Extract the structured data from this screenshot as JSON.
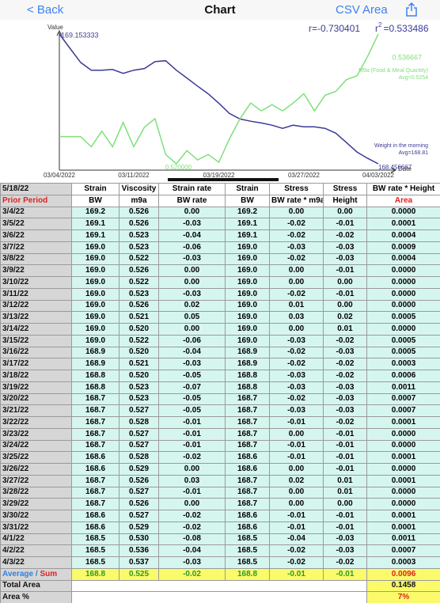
{
  "nav": {
    "back": "< Back",
    "title": "Chart",
    "csv": "CSV",
    "area": "Area"
  },
  "chart": {
    "type": "line",
    "value_label": "Value",
    "date_label": "Date",
    "r": "r=-0.730401",
    "r2": {
      "base": "r",
      "sup": "2",
      "text": "=0.533486"
    },
    "x": [
      "03/04/2022",
      "03/05/2022",
      "03/06/2022",
      "03/07/2022",
      "03/08/2022",
      "03/09/2022",
      "03/10/2022",
      "03/11/2022",
      "03/12/2022",
      "03/13/2022",
      "03/14/2022",
      "03/15/2022",
      "03/16/2022",
      "03/17/2022",
      "03/18/2022",
      "03/19/2022",
      "03/20/2022",
      "03/21/2022",
      "03/22/2022",
      "03/23/2022",
      "03/24/2022",
      "03/25/2022",
      "03/26/2022",
      "03/27/2022",
      "03/28/2022",
      "03/29/2022",
      "03/30/2022",
      "03/31/2022",
      "04/01/2022",
      "04/02/2022",
      "04/03/2022"
    ],
    "xticks": [
      "03/04/2022",
      "03/11/2022",
      "03/19/2022",
      "03/27/2022",
      "04/03/2022"
    ],
    "series": [
      {
        "name": "Weight in the morning",
        "avg": "Avg=168.81",
        "max_label": "169.153333",
        "min_label": "168.456667",
        "color": "#3c3a96",
        "values": [
          169.153333,
          169.077,
          169.001,
          168.959,
          168.959,
          168.963,
          168.942,
          168.959,
          168.968,
          169.005,
          169.01,
          168.959,
          168.917,
          168.874,
          168.832,
          168.782,
          168.727,
          168.697,
          168.685,
          168.676,
          168.664,
          168.647,
          168.664,
          168.655,
          168.655,
          168.647,
          168.621,
          168.571,
          168.52,
          168.486,
          168.456667
        ]
      },
      {
        "name": "M9a (Food & Meal Quantity)",
        "avg": "Avg=0.5254",
        "max_label": "0.536667",
        "min_label": "0.520000",
        "color": "#7fe07a",
        "values": [
          0.5235,
          0.5235,
          0.5235,
          0.5222,
          0.5242,
          0.5222,
          0.5253,
          0.5222,
          0.5247,
          0.5258,
          0.5212,
          0.52,
          0.5217,
          0.5205,
          0.5212,
          0.5202,
          0.5232,
          0.5258,
          0.5278,
          0.5268,
          0.5276,
          0.5268,
          0.5278,
          0.529,
          0.5268,
          0.5288,
          0.5293,
          0.5308,
          0.5313,
          0.5338,
          0.536667
        ]
      }
    ]
  },
  "table": {
    "header": [
      [
        "5/18/22",
        "Strain",
        "Viscosity",
        "Strain rate",
        "Strain",
        "Stress",
        "Stress",
        "BW rate * Height"
      ],
      [
        "Prior Period",
        "BW",
        "m9a",
        "BW rate",
        "BW",
        "BW rate * m9a",
        "Height",
        "Area"
      ]
    ],
    "rows": [
      [
        "3/4/22",
        "169.2",
        "0.526",
        "0.00",
        "169.2",
        "0.00",
        "0.00",
        "0.0000"
      ],
      [
        "3/5/22",
        "169.1",
        "0.526",
        "-0.03",
        "169.1",
        "-0.02",
        "-0.01",
        "0.0001"
      ],
      [
        "3/6/22",
        "169.1",
        "0.523",
        "-0.04",
        "169.1",
        "-0.02",
        "-0.02",
        "0.0004"
      ],
      [
        "3/7/22",
        "169.0",
        "0.523",
        "-0.06",
        "169.0",
        "-0.03",
        "-0.03",
        "0.0009"
      ],
      [
        "3/8/22",
        "169.0",
        "0.522",
        "-0.03",
        "169.0",
        "-0.02",
        "-0.03",
        "0.0004"
      ],
      [
        "3/9/22",
        "169.0",
        "0.526",
        "0.00",
        "169.0",
        "0.00",
        "-0.01",
        "0.0000"
      ],
      [
        "3/10/22",
        "169.0",
        "0.522",
        "0.00",
        "169.0",
        "0.00",
        "0.00",
        "0.0000"
      ],
      [
        "3/11/22",
        "169.0",
        "0.523",
        "-0.03",
        "169.0",
        "-0.02",
        "-0.01",
        "0.0000"
      ],
      [
        "3/12/22",
        "169.0",
        "0.526",
        "0.02",
        "169.0",
        "0.01",
        "0.00",
        "0.0000"
      ],
      [
        "3/13/22",
        "169.0",
        "0.521",
        "0.05",
        "169.0",
        "0.03",
        "0.02",
        "0.0005"
      ],
      [
        "3/14/22",
        "169.0",
        "0.520",
        "0.00",
        "169.0",
        "0.00",
        "0.01",
        "0.0000"
      ],
      [
        "3/15/22",
        "169.0",
        "0.522",
        "-0.06",
        "169.0",
        "-0.03",
        "-0.02",
        "0.0005"
      ],
      [
        "3/16/22",
        "168.9",
        "0.520",
        "-0.04",
        "168.9",
        "-0.02",
        "-0.03",
        "0.0005"
      ],
      [
        "3/17/22",
        "168.9",
        "0.521",
        "-0.03",
        "168.9",
        "-0.02",
        "-0.02",
        "0.0003"
      ],
      [
        "3/18/22",
        "168.8",
        "0.520",
        "-0.05",
        "168.8",
        "-0.03",
        "-0.02",
        "0.0006"
      ],
      [
        "3/19/22",
        "168.8",
        "0.523",
        "-0.07",
        "168.8",
        "-0.03",
        "-0.03",
        "0.0011"
      ],
      [
        "3/20/22",
        "168.7",
        "0.523",
        "-0.05",
        "168.7",
        "-0.02",
        "-0.03",
        "0.0007"
      ],
      [
        "3/21/22",
        "168.7",
        "0.527",
        "-0.05",
        "168.7",
        "-0.03",
        "-0.03",
        "0.0007"
      ],
      [
        "3/22/22",
        "168.7",
        "0.528",
        "-0.01",
        "168.7",
        "-0.01",
        "-0.02",
        "0.0001"
      ],
      [
        "3/23/22",
        "168.7",
        "0.527",
        "-0.01",
        "168.7",
        "0.00",
        "-0.01",
        "0.0000"
      ],
      [
        "3/24/22",
        "168.7",
        "0.527",
        "-0.01",
        "168.7",
        "-0.01",
        "-0.01",
        "0.0000"
      ],
      [
        "3/25/22",
        "168.6",
        "0.528",
        "-0.02",
        "168.6",
        "-0.01",
        "-0.01",
        "0.0001"
      ],
      [
        "3/26/22",
        "168.6",
        "0.529",
        "0.00",
        "168.6",
        "0.00",
        "-0.01",
        "0.0000"
      ],
      [
        "3/27/22",
        "168.7",
        "0.526",
        "0.03",
        "168.7",
        "0.02",
        "0.01",
        "0.0001"
      ],
      [
        "3/28/22",
        "168.7",
        "0.527",
        "-0.01",
        "168.7",
        "0.00",
        "0.01",
        "0.0000"
      ],
      [
        "3/29/22",
        "168.7",
        "0.526",
        "0.00",
        "168.7",
        "0.00",
        "0.00",
        "0.0000"
      ],
      [
        "3/30/22",
        "168.6",
        "0.527",
        "-0.02",
        "168.6",
        "-0.01",
        "-0.01",
        "0.0001"
      ],
      [
        "3/31/22",
        "168.6",
        "0.529",
        "-0.02",
        "168.6",
        "-0.01",
        "-0.01",
        "0.0001"
      ],
      [
        "4/1/22",
        "168.5",
        "0.530",
        "-0.08",
        "168.5",
        "-0.04",
        "-0.03",
        "0.0011"
      ],
      [
        "4/2/22",
        "168.5",
        "0.536",
        "-0.04",
        "168.5",
        "-0.02",
        "-0.03",
        "0.0007"
      ],
      [
        "4/3/22",
        "168.5",
        "0.537",
        "-0.03",
        "168.5",
        "-0.02",
        "-0.02",
        "0.0003"
      ]
    ],
    "average": {
      "label": {
        "average": "Average",
        "slash": "/",
        "sum": "Sum"
      },
      "cells": [
        "168.8",
        "0.525",
        "-0.02",
        "168.8",
        "-0.01",
        "-0.01",
        "0.0096"
      ]
    },
    "total_area": {
      "label": "Total Area",
      "value": "0.1458"
    },
    "area_pct": {
      "label": "Area %",
      "value": "7%"
    }
  }
}
